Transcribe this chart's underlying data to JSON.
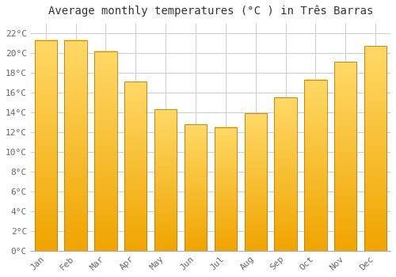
{
  "title": "Average monthly temperatures (°C ) in Três Barras",
  "months": [
    "Jan",
    "Feb",
    "Mar",
    "Apr",
    "May",
    "Jun",
    "Jul",
    "Aug",
    "Sep",
    "Oct",
    "Nov",
    "Dec"
  ],
  "values": [
    21.3,
    21.3,
    20.2,
    17.1,
    14.3,
    12.8,
    12.5,
    13.9,
    15.5,
    17.3,
    19.1,
    20.7
  ],
  "bar_color_top": "#FFD966",
  "bar_color_bottom": "#F0A500",
  "bar_edge_color": "#C87800",
  "background_color": "#FFFFFF",
  "grid_color": "#CCCCCC",
  "ylim": [
    0,
    23
  ],
  "ytick_step": 2,
  "title_fontsize": 10,
  "tick_fontsize": 8,
  "font_family": "monospace"
}
